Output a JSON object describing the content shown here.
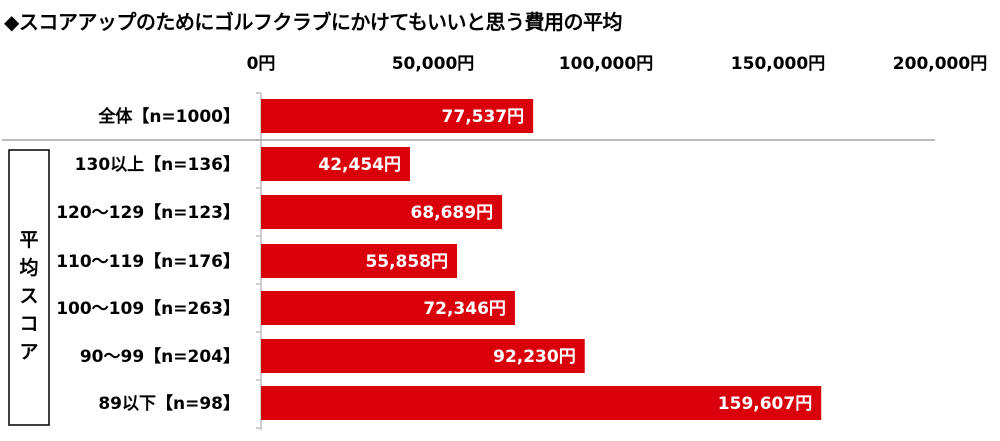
{
  "title": "◆スコアアップのためにゴルフクラブにかけてもいいと思う費用の平均",
  "chart_data": {
    "type": "bar",
    "orientation": "horizontal",
    "title": "◆スコアアップのためにゴルフクラブにかけてもいいと思う費用の平均",
    "xlim": [
      0,
      200000
    ],
    "x_ticks": [
      "0円",
      "50,000円",
      "100,000円",
      "150,000円",
      "200,000円"
    ],
    "grid": false,
    "group_label": "平均スコア",
    "bar_color": "#d9000b",
    "categories": [
      "全体【n=1000】",
      "130以上【n=136】",
      "120〜129【n=123】",
      "110〜119【n=176】",
      "100〜109【n=263】",
      "90〜99【n=204】",
      "89以下【n=98】"
    ],
    "values": [
      77537,
      42454,
      68689,
      55858,
      72346,
      92230,
      159607
    ],
    "value_labels": [
      "77,537円",
      "42,454円",
      "68,689円",
      "55,858円",
      "72,346円",
      "92,230円",
      "159,607円"
    ]
  }
}
